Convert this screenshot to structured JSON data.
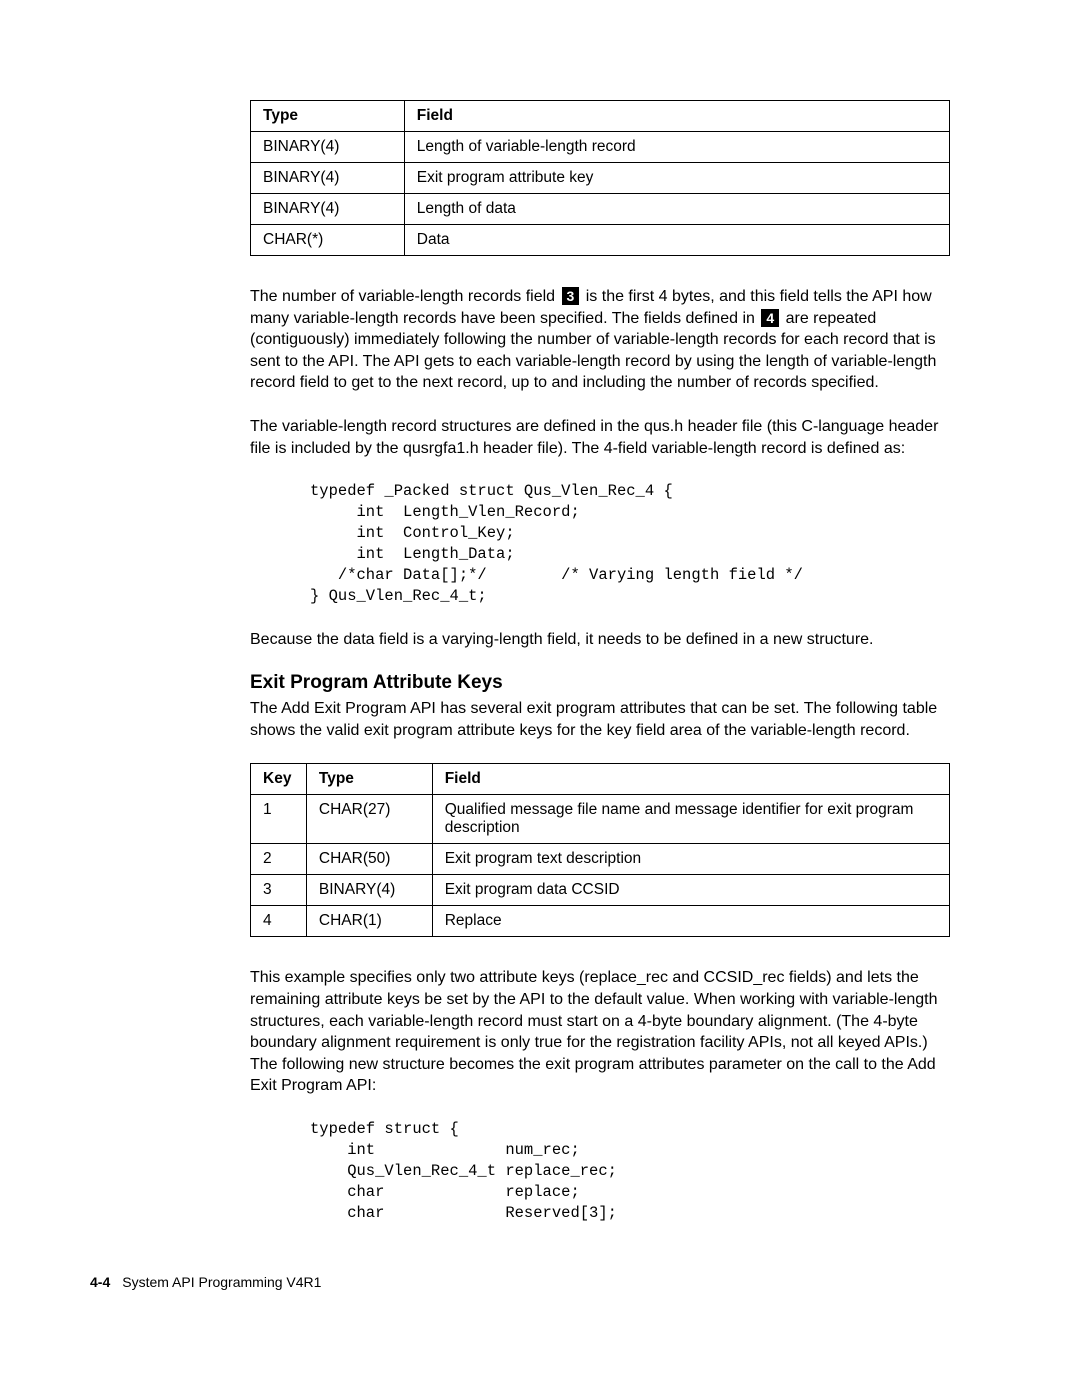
{
  "table1": {
    "headers": {
      "type": "Type",
      "field": "Field"
    },
    "rows": [
      {
        "type": "BINARY(4)",
        "field": "Length of variable-length record"
      },
      {
        "type": "BINARY(4)",
        "field": "Exit program attribute key"
      },
      {
        "type": "BINARY(4)",
        "field": "Length of data"
      },
      {
        "type": "CHAR(*)",
        "field": "Data"
      }
    ]
  },
  "para1": {
    "s1": "The number of variable-length records field ",
    "c1": "3",
    "s2": " is the first 4 bytes, and this field tells the API how many variable-length records have been specified.  The fields defined in ",
    "c2": "4",
    "s3": " are repeated (contiguously) immediately following the number of variable-length records for each record that is sent to the API.  The API gets to each variable-length record by using the length of variable-length record field to get to the next record, up to and including the number of records specified."
  },
  "para2": "The variable-length record structures are defined in the qus.h header file (this C-language header file is included by the qusrgfa1.h header file). The 4-field variable-length record is defined as:",
  "code1": "typedef _Packed struct Qus_Vlen_Rec_4 {\n     int  Length_Vlen_Record;\n     int  Control_Key;\n     int  Length_Data;\n   /*char Data[];*/        /* Varying length field */\n} Qus_Vlen_Rec_4_t;",
  "para3": "Because the data field is a varying-length field, it needs to be defined in a new structure.",
  "heading": "Exit Program Attribute Keys",
  "para4": "The Add Exit Program API has several exit program attributes that can be set.  The following table shows the valid exit program attribute keys for the key field area of the variable-length record.",
  "table2": {
    "headers": {
      "key": "Key",
      "type": "Type",
      "field": "Field"
    },
    "rows": [
      {
        "key": "1",
        "type": "CHAR(27)",
        "field": "Qualified message file name and message identifier for exit program description"
      },
      {
        "key": "2",
        "type": "CHAR(50)",
        "field": "Exit program text description"
      },
      {
        "key": "3",
        "type": "BINARY(4)",
        "field": "Exit program data CCSID"
      },
      {
        "key": "4",
        "type": "CHAR(1)",
        "field": "Replace"
      }
    ]
  },
  "para5": "This example specifies only two attribute keys (replace_rec and CCSID_rec fields) and lets the remaining attribute keys be set by the API to the default value.  When working with variable-length structures, each variable-length record must start on a 4-byte boundary alignment.  (The 4-byte boundary alignment requirement is only true for the registration facility APIs, not all keyed APIs.)  The following new structure becomes the exit program attributes parameter on the call to the Add Exit Program API:",
  "code2": "typedef struct {\n    int              num_rec;\n    Qus_Vlen_Rec_4_t replace_rec;\n    char             replace;\n    char             Reserved[3];",
  "footer": {
    "pagenum": "4-4",
    "title": "System API Programming V4R1"
  }
}
